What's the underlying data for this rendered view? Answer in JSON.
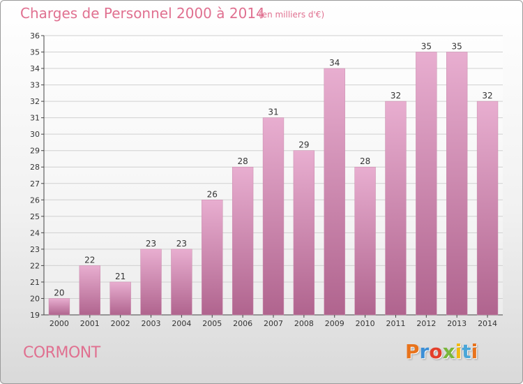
{
  "header": {
    "title": "Charges de Personnel 2000 à 2014",
    "subtitle": "(en milliers d'€)"
  },
  "footer": {
    "city": "CORMONT",
    "logo_letters": [
      "P",
      "r",
      "o",
      "x",
      "i",
      "t",
      "i"
    ],
    "logo_colors": [
      "#e8731c",
      "#3c8fd6",
      "#e33f2b",
      "#79b63b",
      "#f2b90f",
      "#4aa6d8",
      "#e8731c"
    ]
  },
  "colors": {
    "bar_light": "#e8aed0",
    "bar_dark": "#b0648e",
    "grid": "#d0d0d0",
    "axis": "#444444",
    "label": "#333333"
  },
  "chart_data": {
    "type": "bar",
    "categories": [
      "2000",
      "2001",
      "2002",
      "2003",
      "2004",
      "2005",
      "2006",
      "2007",
      "2008",
      "2009",
      "2010",
      "2011",
      "2012",
      "2013",
      "2014"
    ],
    "values": [
      20,
      22,
      21,
      23,
      23,
      26,
      28,
      31,
      29,
      34,
      28,
      32,
      35,
      35,
      32
    ],
    "title": "Charges de Personnel 2000 à 2014",
    "subtitle": "(en milliers d'€)",
    "xlabel": "",
    "ylabel": "",
    "ylim": [
      19,
      36
    ],
    "yticks": [
      19,
      20,
      21,
      22,
      23,
      24,
      25,
      26,
      27,
      28,
      29,
      30,
      31,
      32,
      33,
      34,
      35,
      36
    ],
    "grid": true,
    "legend": "none"
  }
}
